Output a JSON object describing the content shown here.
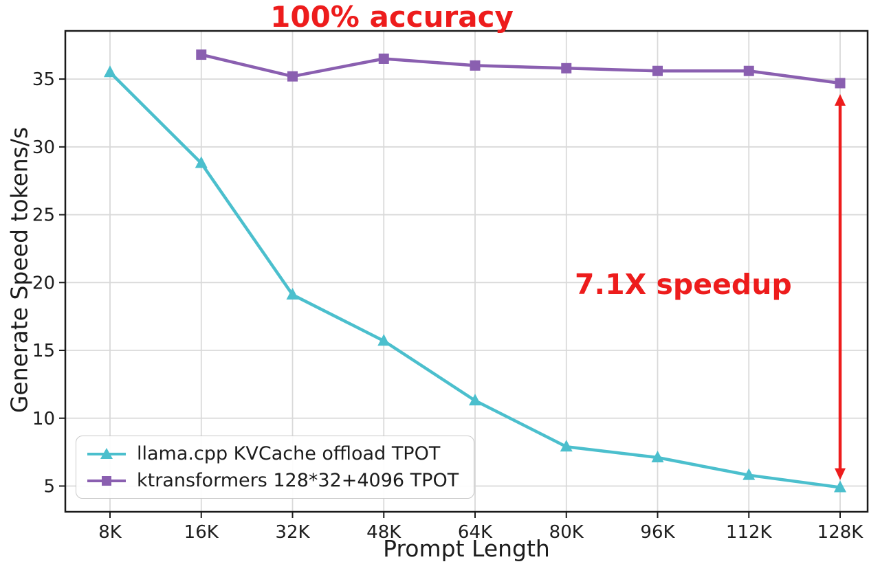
{
  "colors": {
    "accent_red": "#ed1c1c",
    "series_cyan": "#4bbfcd",
    "series_purple": "#8a5fb0",
    "grid": "#d9d9d9",
    "axis_text": "#1c1c1c"
  },
  "chart_data": {
    "type": "line",
    "title": "100% accuracy",
    "xlabel": "Prompt Length",
    "ylabel": "Generate Speed tokens/s",
    "categories": [
      "8K",
      "16K",
      "32K",
      "48K",
      "64K",
      "80K",
      "96K",
      "112K",
      "128K"
    ],
    "series": [
      {
        "name": "llama.cpp KVCache offload TPOT",
        "color": "#4bbfcd",
        "marker": "triangle",
        "values": [
          35.5,
          28.8,
          19.1,
          15.7,
          11.3,
          7.9,
          7.1,
          5.8,
          4.9
        ]
      },
      {
        "name": "ktransformers 128*32+4096 TPOT",
        "color": "#8a5fb0",
        "marker": "square",
        "values": [
          null,
          36.8,
          35.2,
          36.5,
          36.0,
          35.8,
          35.6,
          35.6,
          34.7
        ]
      }
    ],
    "yticks": [
      5,
      10,
      15,
      20,
      25,
      30,
      35
    ],
    "ylim": [
      3.1,
      38.55
    ],
    "grid": true,
    "legend_position": "lower left",
    "annotation": {
      "text": "7.1X speedup",
      "color": "#ed1c1c",
      "arrow": {
        "category": "128K",
        "from": 33.9,
        "to": 5.45
      }
    }
  }
}
